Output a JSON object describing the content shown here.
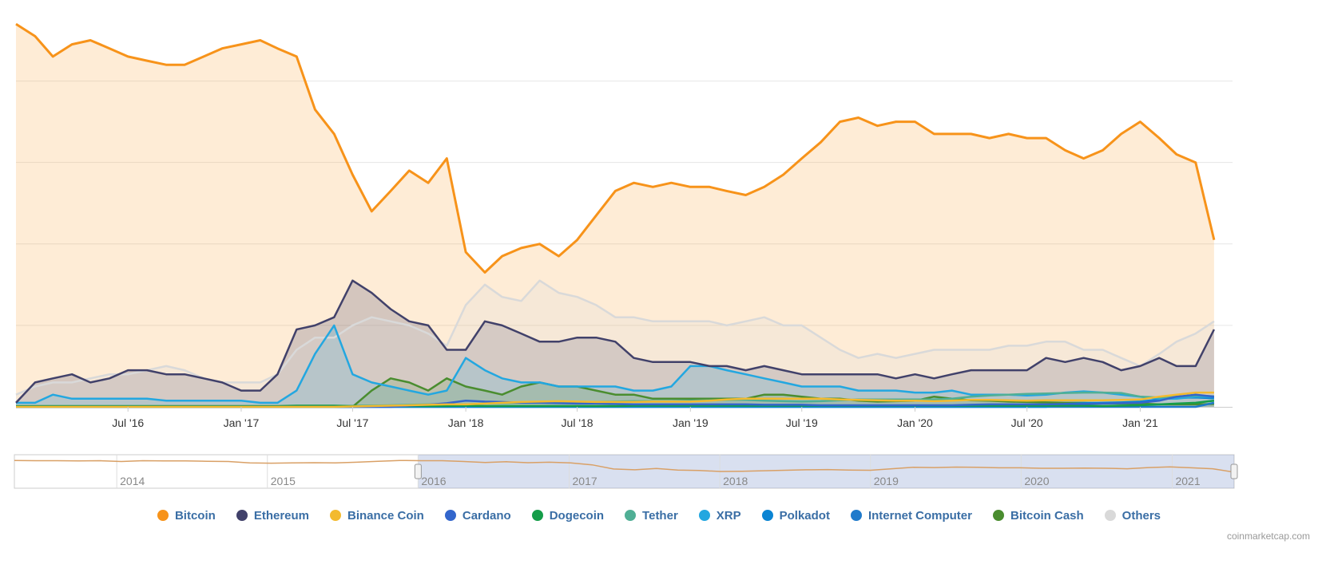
{
  "chart_data": {
    "type": "area",
    "title": "",
    "xlabel": "",
    "ylabel": "",
    "ylim": [
      0,
      95
    ],
    "grid": true,
    "legend_position": "bottom",
    "x_start": "2016-01-01",
    "x_end": "2021-05-31",
    "x_ticks": [
      {
        "label": "Jul '16",
        "date": "2016-07-01"
      },
      {
        "label": "Jan '17",
        "date": "2017-01-01"
      },
      {
        "label": "Jul '17",
        "date": "2017-07-01"
      },
      {
        "label": "Jan '18",
        "date": "2018-01-01"
      },
      {
        "label": "Jul '18",
        "date": "2018-07-01"
      },
      {
        "label": "Jan '19",
        "date": "2019-01-01"
      },
      {
        "label": "Jul '19",
        "date": "2019-07-01"
      },
      {
        "label": "Jan '20",
        "date": "2020-01-01"
      },
      {
        "label": "Jul '20",
        "date": "2020-07-01"
      },
      {
        "label": "Jan '21",
        "date": "2021-01-01"
      }
    ],
    "x": [
      "2016-01-01",
      "2016-02-01",
      "2016-03-01",
      "2016-04-01",
      "2016-05-01",
      "2016-06-01",
      "2016-07-01",
      "2016-08-01",
      "2016-09-01",
      "2016-10-01",
      "2016-11-01",
      "2016-12-01",
      "2017-01-01",
      "2017-02-01",
      "2017-03-01",
      "2017-04-01",
      "2017-05-01",
      "2017-06-01",
      "2017-07-01",
      "2017-08-01",
      "2017-09-01",
      "2017-10-01",
      "2017-11-01",
      "2017-12-01",
      "2018-01-01",
      "2018-02-01",
      "2018-03-01",
      "2018-04-01",
      "2018-05-01",
      "2018-06-01",
      "2018-07-01",
      "2018-08-01",
      "2018-09-01",
      "2018-10-01",
      "2018-11-01",
      "2018-12-01",
      "2019-01-01",
      "2019-02-01",
      "2019-03-01",
      "2019-04-01",
      "2019-05-01",
      "2019-06-01",
      "2019-07-01",
      "2019-08-01",
      "2019-09-01",
      "2019-10-01",
      "2019-11-01",
      "2019-12-01",
      "2020-01-01",
      "2020-02-01",
      "2020-03-01",
      "2020-04-01",
      "2020-05-01",
      "2020-06-01",
      "2020-07-01",
      "2020-08-01",
      "2020-09-01",
      "2020-10-01",
      "2020-11-01",
      "2020-12-01",
      "2021-01-01",
      "2021-02-01",
      "2021-03-01",
      "2021-04-01",
      "2021-05-01"
    ],
    "series": [
      {
        "name": "Bitcoin",
        "color": "#f7931a",
        "fill": true,
        "values": [
          94,
          91,
          86,
          89,
          90,
          88,
          86,
          85,
          84,
          84,
          86,
          88,
          89,
          90,
          88,
          86,
          73,
          67,
          57,
          48,
          53,
          58,
          55,
          61,
          38,
          33,
          37,
          39,
          40,
          37,
          41,
          47,
          53,
          55,
          54,
          55,
          54,
          54,
          53,
          52,
          54,
          57,
          61,
          65,
          70,
          71,
          69,
          70,
          70,
          67,
          67,
          67,
          66,
          67,
          66,
          66,
          63,
          61,
          63,
          67,
          70,
          66,
          62,
          60,
          41
        ]
      },
      {
        "name": "Ethereum",
        "color": "#41416a",
        "fill": true,
        "values": [
          1,
          6,
          7,
          8,
          6,
          7,
          9,
          9,
          8,
          8,
          7,
          6,
          4,
          4,
          8,
          19,
          20,
          22,
          31,
          28,
          24,
          21,
          20,
          14,
          14,
          21,
          20,
          18,
          16,
          16,
          17,
          17,
          16,
          12,
          11,
          11,
          11,
          10,
          10,
          9,
          10,
          9,
          8,
          8,
          8,
          8,
          8,
          7,
          8,
          7,
          8,
          9,
          9,
          9,
          9,
          12,
          11,
          12,
          11,
          9,
          10,
          12,
          10,
          10,
          19
        ]
      },
      {
        "name": "Binance Coin",
        "color": "#f3ba2f",
        "fill": false,
        "values": [
          0,
          0,
          0,
          0,
          0,
          0,
          0,
          0,
          0,
          0,
          0,
          0,
          0,
          0,
          0,
          0,
          0,
          0,
          0.1,
          0.2,
          0.3,
          0.4,
          0.5,
          0.6,
          0.6,
          0.8,
          1,
          1.2,
          1.3,
          1.4,
          1.3,
          1.2,
          1.2,
          1.2,
          1.3,
          1.3,
          1.3,
          1.5,
          1.8,
          2,
          2,
          2,
          2,
          2,
          1.8,
          1.7,
          1.6,
          1.5,
          1.5,
          1.4,
          1.5,
          1.7,
          1.7,
          1.6,
          1.5,
          1.6,
          1.6,
          1.6,
          1.6,
          1.7,
          1.8,
          2.5,
          3,
          3.5,
          3.5
        ]
      },
      {
        "name": "Cardano",
        "color": "#3366cc",
        "fill": false,
        "values": [
          0,
          0,
          0,
          0,
          0,
          0,
          0,
          0,
          0,
          0,
          0,
          0,
          0,
          0,
          0,
          0,
          0,
          0,
          0,
          0,
          0,
          0.3,
          0.5,
          0.9,
          1.5,
          1.3,
          1.2,
          1,
          1,
          0.9,
          0.8,
          0.8,
          0.7,
          0.6,
          0.6,
          0.6,
          0.6,
          0.6,
          0.6,
          0.6,
          0.5,
          0.5,
          0.5,
          0.4,
          0.4,
          0.4,
          0.4,
          0.4,
          0.4,
          0.4,
          0.4,
          0.5,
          0.6,
          0.6,
          0.6,
          0.6,
          0.7,
          0.7,
          0.8,
          0.9,
          1,
          1.5,
          2.5,
          3,
          2.5
        ]
      },
      {
        "name": "Dogecoin",
        "color": "#159d49",
        "fill": false,
        "values": [
          0.2,
          0.2,
          0.2,
          0.2,
          0.2,
          0.2,
          0.2,
          0.2,
          0.2,
          0.2,
          0.2,
          0.2,
          0.2,
          0.2,
          0.2,
          0.3,
          0.3,
          0.3,
          0.2,
          0.2,
          0.2,
          0.2,
          0.2,
          0.2,
          0.3,
          0.2,
          0.2,
          0.2,
          0.2,
          0.2,
          0.2,
          0.2,
          0.2,
          0.3,
          0.3,
          0.3,
          0.3,
          0.3,
          0.3,
          0.3,
          0.3,
          0.3,
          0.3,
          0.3,
          0.3,
          0.3,
          0.3,
          0.3,
          0.3,
          0.3,
          0.3,
          0.3,
          0.3,
          0.3,
          0.3,
          0.3,
          0.3,
          0.3,
          0.2,
          0.3,
          0.4,
          0.6,
          0.8,
          1,
          1.5
        ]
      },
      {
        "name": "Tether",
        "color": "#50af95",
        "fill": false,
        "values": [
          0.1,
          0.1,
          0.1,
          0.1,
          0.1,
          0.1,
          0.1,
          0.1,
          0.1,
          0.1,
          0.1,
          0.1,
          0.1,
          0.1,
          0.1,
          0.1,
          0.1,
          0.1,
          0.2,
          0.3,
          0.4,
          0.5,
          0.6,
          0.6,
          0.6,
          0.8,
          0.9,
          1,
          1,
          1,
          1,
          1.2,
          1.3,
          1.4,
          1.4,
          1.4,
          1.5,
          1.6,
          1.7,
          1.7,
          1.5,
          1.4,
          1.3,
          1.4,
          1.6,
          1.8,
          1.8,
          1.8,
          1.8,
          1.8,
          2,
          2.5,
          2.8,
          3,
          3.2,
          3.3,
          3.4,
          3.5,
          3.5,
          3.4,
          2.5,
          2.3,
          2.5,
          2.8,
          2.6
        ]
      },
      {
        "name": "XRP",
        "color": "#23a7e0",
        "fill": true,
        "values": [
          1,
          1,
          3,
          2,
          2,
          2,
          2,
          2,
          1.5,
          1.5,
          1.5,
          1.5,
          1.5,
          1,
          1,
          4,
          13,
          20,
          8,
          6,
          5,
          4,
          3,
          4,
          12,
          9,
          7,
          6,
          6,
          5,
          5,
          5,
          5,
          4,
          4,
          5,
          10,
          10,
          9,
          8,
          7,
          6,
          5,
          5,
          5,
          4,
          4,
          4,
          3.5,
          3.5,
          4,
          3,
          3,
          3,
          2.8,
          3,
          3.5,
          3.8,
          3.5,
          3,
          2.5,
          2,
          2,
          2.5,
          2.5
        ]
      },
      {
        "name": "Polkadot",
        "color": "#0a84d3",
        "fill": false,
        "values": [
          0,
          0,
          0,
          0,
          0,
          0,
          0,
          0,
          0,
          0,
          0,
          0,
          0,
          0,
          0,
          0,
          0,
          0,
          0,
          0,
          0,
          0,
          0,
          0,
          0,
          0,
          0,
          0,
          0,
          0,
          0,
          0,
          0,
          0,
          0,
          0,
          0,
          0,
          0,
          0,
          0,
          0,
          0,
          0,
          0,
          0,
          0,
          0,
          0,
          0,
          0,
          0,
          0,
          0,
          0,
          0,
          0.7,
          0.9,
          1,
          1.1,
          1.3,
          1.8,
          2.2,
          2.3,
          2.1
        ]
      },
      {
        "name": "Internet Computer",
        "color": "#1f7acb",
        "fill": false,
        "values": [
          0,
          0,
          0,
          0,
          0,
          0,
          0,
          0,
          0,
          0,
          0,
          0,
          0,
          0,
          0,
          0,
          0,
          0,
          0,
          0,
          0,
          0,
          0,
          0,
          0,
          0,
          0,
          0,
          0,
          0,
          0,
          0,
          0,
          0,
          0,
          0,
          0,
          0,
          0,
          0,
          0,
          0,
          0,
          0,
          0,
          0,
          0,
          0,
          0,
          0,
          0,
          0,
          0,
          0,
          0,
          0,
          0,
          0,
          0,
          0,
          0,
          0,
          0,
          0,
          1
        ]
      },
      {
        "name": "Bitcoin Cash",
        "color": "#4a8d2f",
        "fill": true,
        "values": [
          0,
          0,
          0,
          0,
          0,
          0,
          0,
          0,
          0,
          0,
          0,
          0,
          0,
          0,
          0,
          0,
          0,
          0,
          0,
          4,
          7,
          6,
          4,
          7,
          5,
          4,
          3,
          5,
          6,
          5,
          5,
          4,
          3,
          3,
          2,
          2,
          2,
          2,
          2,
          2,
          3,
          3,
          2.5,
          2,
          2,
          1.5,
          1.3,
          1.4,
          1.5,
          2.5,
          2,
          1.6,
          1.5,
          1.3,
          1.2,
          1.1,
          1,
          1,
          0.9,
          0.8,
          0.8,
          0.6,
          0.6,
          0.6,
          0.7
        ]
      },
      {
        "name": "Others",
        "color": "#d9d9d9",
        "fill": true,
        "values": [
          3,
          5,
          6,
          6,
          7,
          8,
          8,
          9,
          10,
          9,
          7,
          6,
          6,
          6,
          8,
          14,
          17,
          17,
          20,
          22,
          21,
          20,
          18,
          15,
          25,
          30,
          27,
          26,
          31,
          28,
          27,
          25,
          22,
          22,
          21,
          21,
          21,
          21,
          20,
          21,
          22,
          20,
          20,
          17,
          14,
          12,
          13,
          12,
          13,
          14,
          14,
          14,
          14,
          15,
          15,
          16,
          16,
          14,
          14,
          12,
          10,
          13,
          16,
          18,
          21
        ]
      }
    ]
  },
  "navigator": {
    "year_labels": [
      "2014",
      "2015",
      "2016",
      "2017",
      "2018",
      "2019",
      "2020",
      "2021"
    ],
    "x_start": "2013-04-28",
    "selection_start": "2016-01-01",
    "selection_end": "2021-05-31",
    "values": [
      94,
      93,
      93,
      92,
      93,
      90,
      93,
      92,
      92,
      91,
      90,
      84,
      83,
      84,
      85,
      84,
      87,
      91,
      94,
      93,
      93,
      90,
      86,
      89,
      85,
      87,
      84,
      76,
      59,
      56,
      61,
      55,
      53,
      49,
      50,
      52,
      54,
      56,
      57,
      55,
      54,
      60,
      66,
      65,
      67,
      66,
      64,
      64,
      62,
      62,
      63,
      62,
      60,
      65,
      68,
      64,
      60,
      46
    ]
  },
  "credit": "coinmarketcap.com"
}
